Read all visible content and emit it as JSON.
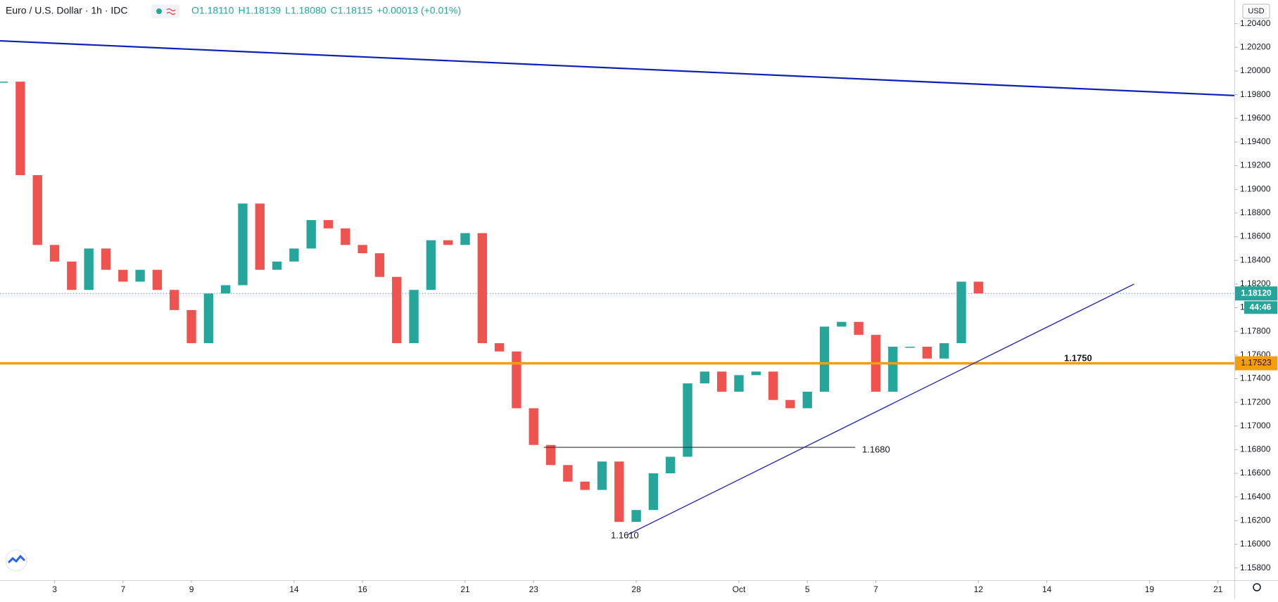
{
  "chart_data": {
    "type": "candlestick",
    "title": "Euro / U.S. Dollar · 1h · IDC",
    "ohlc_header": [
      "O1.18110",
      "H1.18139",
      "L1.18080",
      "C1.18115",
      "+0.00013 (+0.01%)"
    ],
    "currency": "USD",
    "last_price_label": "1.18120",
    "last_price": 1.1812,
    "countdown": "44:46",
    "level_price_label": "1.17523",
    "level_labels": [
      "1.1750",
      "1.1680",
      "1.1610"
    ],
    "up_color": "#26a69a",
    "down_color": "#ef5350",
    "grid": false,
    "x": [
      0.5,
      1,
      1.5,
      2,
      2.5,
      3,
      3.5,
      4,
      4.5,
      5,
      5.5,
      6,
      6.5,
      7,
      7.5,
      8,
      8.5,
      9,
      9.5,
      10,
      10.5,
      11,
      11.5,
      12,
      12.5,
      13,
      13.5,
      14,
      14.5,
      15,
      15.5,
      16,
      16.5,
      17,
      17.5,
      18,
      18.5,
      19,
      19.5,
      20,
      20.5,
      21,
      21.5,
      22,
      22.5,
      23,
      23.5,
      24,
      24.5,
      25,
      25.5,
      26,
      26.5,
      27,
      27.5,
      28,
      28.5,
      29
    ],
    "values": [
      1.1991,
      1.1912,
      1.1853,
      1.1839,
      1.1815,
      1.185,
      1.1832,
      1.1822,
      1.1832,
      1.1815,
      1.1798,
      1.177,
      1.1812,
      1.1819,
      1.1888,
      1.1832,
      1.1839,
      1.185,
      1.1874,
      1.1867,
      1.1853,
      1.1846,
      1.1826,
      1.177,
      1.1815,
      1.1857,
      1.1853,
      1.1863,
      1.177,
      1.1763,
      1.1715,
      1.1684,
      1.1667,
      1.1653,
      1.1646,
      1.167,
      1.1619,
      1.1629,
      1.166,
      1.1674,
      1.1736,
      1.1746,
      1.1729,
      1.1743,
      1.1746,
      1.1722,
      1.1715,
      1.1729,
      1.1784,
      1.1788,
      1.1777,
      1.1729,
      1.1767,
      1.1767,
      1.1757,
      1.177,
      1.1822,
      1.1812
    ],
    "lines": [
      {
        "x": [
          0.405,
          36.48
        ],
        "y": [
          1.20255,
          1.19793
        ],
        "color": "#0d1fb5",
        "width": 2.2
      },
      {
        "x": [
          0.405,
          36.48
        ],
        "y": [
          1.1753,
          1.1753
        ],
        "color": "#f59d0a",
        "width": 3.5
      },
      {
        "x": [
          16.3,
          25.4
        ],
        "y": [
          1.1682,
          1.1682
        ],
        "color": "#333333",
        "width": 1.2
      },
      {
        "x": [
          18.74,
          33.55
        ],
        "y": [
          1.1608,
          1.182
        ],
        "color": "#2a2fa8",
        "width": 1.4
      }
    ],
    "xlim": [
      0.405,
      36.48
    ],
    "ylim": [
      1.15697,
      1.206
    ],
    "xticks": [
      {
        "value": 2,
        "label": "3"
      },
      {
        "value": 4,
        "label": "7"
      },
      {
        "value": 6,
        "label": "9"
      },
      {
        "value": 9,
        "label": "14"
      },
      {
        "value": 11,
        "label": "16"
      },
      {
        "value": 14,
        "label": "21"
      },
      {
        "value": 16,
        "label": "23"
      },
      {
        "value": 19,
        "label": "28"
      },
      {
        "value": 22,
        "label": "Oct"
      },
      {
        "value": 24,
        "label": "5"
      },
      {
        "value": 26,
        "label": "7"
      },
      {
        "value": 29,
        "label": "12"
      },
      {
        "value": 31,
        "label": "14"
      },
      {
        "value": 34,
        "label": "19"
      },
      {
        "value": 36,
        "label": "21"
      }
    ],
    "yticks": [
      {
        "value": 1.158,
        "label": "1.15800"
      },
      {
        "value": 1.16,
        "label": "1.16000"
      },
      {
        "value": 1.162,
        "label": "1.16200"
      },
      {
        "value": 1.164,
        "label": "1.16400"
      },
      {
        "value": 1.166,
        "label": "1.16600"
      },
      {
        "value": 1.168,
        "label": "1.16800"
      },
      {
        "value": 1.17,
        "label": "1.17000"
      },
      {
        "value": 1.172,
        "label": "1.17200"
      },
      {
        "value": 1.174,
        "label": "1.17400"
      },
      {
        "value": 1.176,
        "label": "1.17600"
      },
      {
        "value": 1.178,
        "label": "1.17800"
      },
      {
        "value": 1.18,
        "label": "1.18000"
      },
      {
        "value": 1.182,
        "label": "1.18200"
      },
      {
        "value": 1.184,
        "label": "1.18400"
      },
      {
        "value": 1.186,
        "label": "1.18600"
      },
      {
        "value": 1.188,
        "label": "1.18800"
      },
      {
        "value": 1.19,
        "label": "1.19000"
      },
      {
        "value": 1.192,
        "label": "1.19200"
      },
      {
        "value": 1.194,
        "label": "1.19400"
      },
      {
        "value": 1.196,
        "label": "1.19600"
      },
      {
        "value": 1.198,
        "label": "1.19800"
      },
      {
        "value": 1.2,
        "label": "1.20000"
      },
      {
        "value": 1.202,
        "label": "1.20200"
      },
      {
        "value": 1.204,
        "label": "1.20400"
      }
    ]
  }
}
